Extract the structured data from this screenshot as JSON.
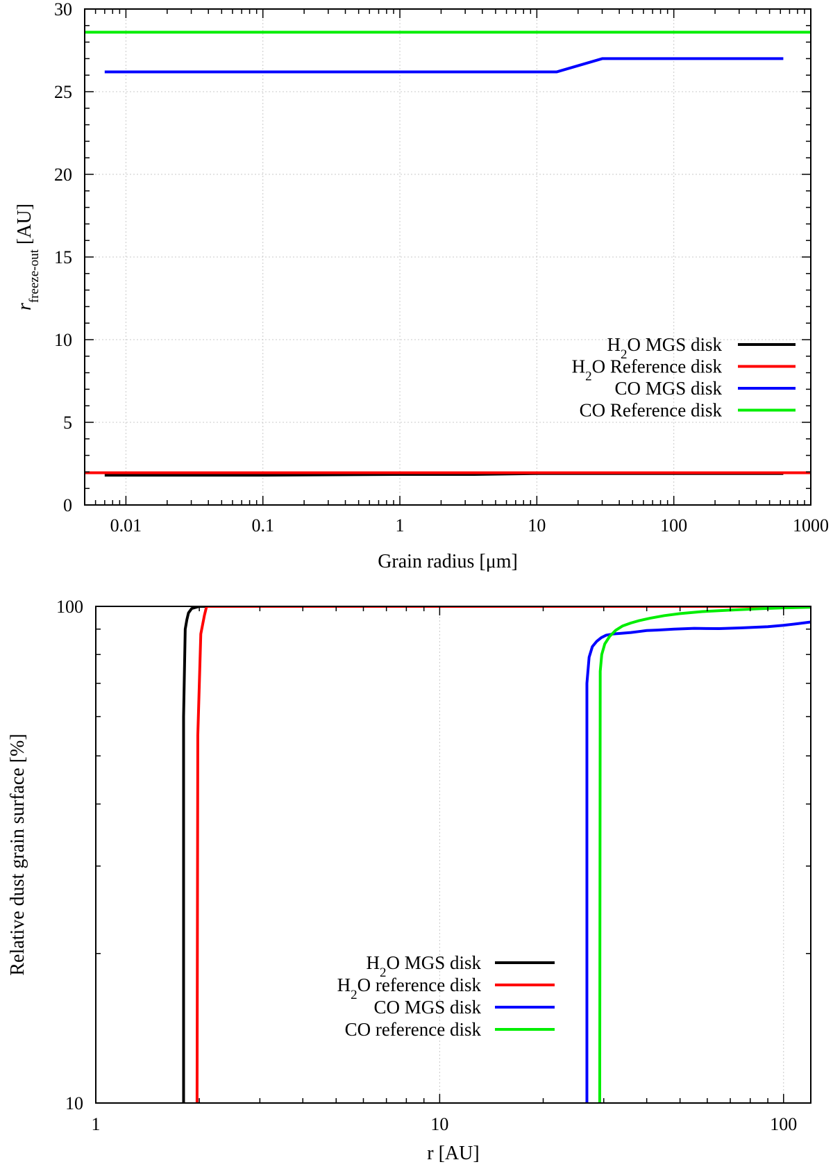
{
  "chart_data": [
    {
      "type": "line",
      "x_scale": "log",
      "xlabel": "Grain radius [μm]",
      "ylabel_main": "r",
      "ylabel_sub": "freeze-out",
      "ylabel_unit": " [AU]",
      "xlim": [
        0.005,
        1000
      ],
      "ylim": [
        0,
        30
      ],
      "x_ticks": [
        0.01,
        0.1,
        1,
        10,
        100,
        1000
      ],
      "x_tick_labels": [
        "0.01",
        "0.1",
        "1",
        "10",
        "100",
        "1000"
      ],
      "y_ticks": [
        0,
        5,
        10,
        15,
        20,
        25,
        30
      ],
      "y_tick_labels": [
        "0",
        "5",
        "10",
        "15",
        "20",
        "25",
        "30"
      ],
      "grid": true,
      "legend_position": "bottom-right",
      "series": [
        {
          "name": "H2O MGS disk",
          "label_pre": "H",
          "label_sub": "2",
          "label_post": "O MGS disk",
          "color": "#000000",
          "x": [
            0.007,
            0.1,
            1,
            3.5,
            10,
            100,
            630
          ],
          "y": [
            1.8,
            1.8,
            1.85,
            1.85,
            1.9,
            1.9,
            1.9
          ]
        },
        {
          "name": "H2O Reference disk",
          "label_pre": "H",
          "label_sub": "2",
          "label_post": "O Reference disk",
          "color": "#ff0000",
          "x": [
            0.005,
            1000
          ],
          "y": [
            1.95,
            1.95
          ]
        },
        {
          "name": "CO MGS disk",
          "label_pre": "CO MGS disk",
          "label_sub": "",
          "label_post": "",
          "color": "#0000ff",
          "x": [
            0.007,
            14,
            30,
            630
          ],
          "y": [
            26.2,
            26.2,
            27.0,
            27.0
          ]
        },
        {
          "name": "CO Reference disk",
          "label_pre": "CO Reference disk",
          "label_sub": "",
          "label_post": "",
          "color": "#00ee00",
          "x": [
            0.005,
            1000
          ],
          "y": [
            28.6,
            28.6
          ]
        }
      ]
    },
    {
      "type": "line",
      "x_scale": "log",
      "y_scale": "log",
      "xlabel": "r [AU]",
      "ylabel": "Relative dust grain surface [%]",
      "xlim": [
        1,
        120
      ],
      "ylim": [
        10,
        100
      ],
      "x_ticks": [
        1,
        10,
        100
      ],
      "x_tick_labels": [
        "1",
        "10",
        "100"
      ],
      "y_ticks": [
        10,
        100
      ],
      "y_tick_labels": [
        "10",
        "100"
      ],
      "grid": true,
      "legend_position": "center-left",
      "series": [
        {
          "name": "H2O MGS disk",
          "label_pre": "H",
          "label_sub": "2",
          "label_post": "O MGS disk",
          "color": "#000000",
          "x": [
            1.8,
            1.8,
            1.82,
            1.84,
            1.86,
            1.9,
            2.0,
            120
          ],
          "y": [
            10,
            60,
            90,
            94,
            97,
            99,
            100,
            100
          ]
        },
        {
          "name": "H2O reference disk",
          "label_pre": "H",
          "label_sub": "2",
          "label_post": "O reference disk",
          "color": "#ff0000",
          "x": [
            1.97,
            1.98,
            2.02,
            2.07,
            2.1,
            120
          ],
          "y": [
            10,
            55,
            88,
            96,
            100,
            100
          ]
        },
        {
          "name": "CO MGS disk",
          "label_pre": "CO MGS disk",
          "label_sub": "",
          "label_post": "",
          "color": "#0000ff",
          "x": [
            26.8,
            26.8,
            27.2,
            27.8,
            28.6,
            29.5,
            30.5,
            32,
            34,
            36,
            38,
            40,
            43,
            48,
            55,
            65,
            75,
            90,
            100,
            110,
            120
          ],
          "y": [
            10,
            70,
            79,
            83,
            85,
            86.5,
            87.5,
            88,
            88.3,
            88.6,
            89,
            89.4,
            89.6,
            90,
            90.3,
            90.2,
            90.5,
            91,
            91.6,
            92.3,
            93
          ]
        },
        {
          "name": "CO reference disk",
          "label_pre": "CO reference disk",
          "label_sub": "",
          "label_post": "",
          "color": "#00ee00",
          "x": [
            29.2,
            29.3,
            29.6,
            30.2,
            31.2,
            32.5,
            34,
            36,
            38,
            41,
            45,
            50,
            58,
            70,
            85,
            100,
            120
          ],
          "y": [
            10,
            74,
            80,
            84,
            87,
            89.5,
            91.3,
            92.6,
            93.6,
            94.7,
            95.8,
            96.7,
            97.6,
            98.3,
            98.9,
            99.3,
            99.6
          ]
        }
      ]
    }
  ]
}
